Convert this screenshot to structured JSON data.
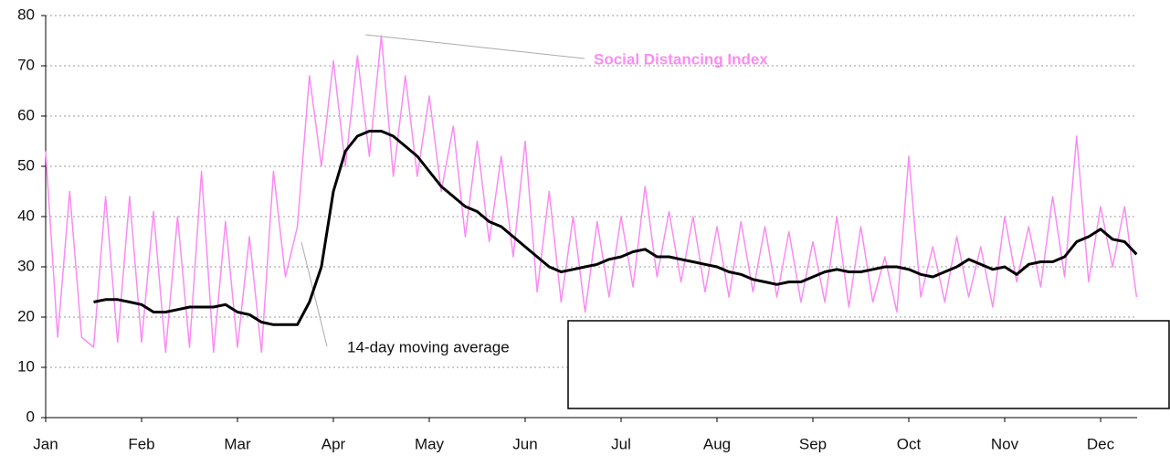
{
  "chart_data": {
    "type": "line",
    "categories": [
      "Jan",
      null,
      null,
      null,
      null,
      null,
      null,
      null,
      "Feb",
      null,
      null,
      null,
      null,
      null,
      null,
      null,
      "Mar",
      null,
      null,
      null,
      null,
      null,
      null,
      null,
      "Apr",
      null,
      null,
      null,
      null,
      null,
      null,
      null,
      "May",
      null,
      null,
      null,
      null,
      null,
      null,
      null,
      "Jun",
      null,
      null,
      null,
      null,
      null,
      null,
      null,
      "Jul",
      null,
      null,
      null,
      null,
      null,
      null,
      null,
      "Aug",
      null,
      null,
      null,
      null,
      null,
      null,
      null,
      "Sep",
      null,
      null,
      null,
      null,
      null,
      null,
      null,
      "Oct",
      null,
      null,
      null,
      null,
      null,
      null,
      null,
      "Nov",
      null,
      null,
      null,
      null,
      null,
      null,
      null,
      "Dec",
      null,
      null,
      null
    ],
    "series": [
      {
        "name": "Social Distancing Index",
        "color": "#f98cf2",
        "values": [
          53,
          16,
          45,
          16,
          14,
          44,
          15,
          44,
          15,
          41,
          13,
          40,
          14,
          49,
          13,
          39,
          14,
          36,
          13,
          49,
          28,
          38,
          68,
          50,
          71,
          50,
          72,
          52,
          76,
          48,
          68,
          48,
          64,
          45,
          58,
          36,
          55,
          35,
          52,
          32,
          55,
          25,
          45,
          23,
          40,
          21,
          39,
          24,
          40,
          26,
          46,
          28,
          41,
          27,
          40,
          25,
          38,
          24,
          39,
          25,
          38,
          24,
          37,
          23,
          35,
          23,
          40,
          22,
          38,
          23,
          32,
          21,
          52,
          24,
          34,
          23,
          36,
          24,
          34,
          22,
          40,
          27,
          38,
          26,
          44,
          28,
          56,
          27,
          42,
          30,
          42,
          24
        ]
      },
      {
        "name": "14-day moving average",
        "color": "#000000",
        "values": [
          null,
          null,
          null,
          null,
          23,
          23.5,
          23.5,
          23,
          22.5,
          21,
          21,
          21.5,
          22,
          22,
          22,
          22.5,
          21,
          20.5,
          19,
          18.5,
          18.5,
          18.5,
          23,
          30,
          45,
          53,
          56,
          57,
          57,
          56,
          54,
          52,
          49,
          46,
          44,
          42,
          41,
          39,
          38,
          36,
          34,
          32,
          30,
          29,
          29.5,
          30,
          30.5,
          31.5,
          32,
          33,
          33.5,
          32,
          32,
          31.5,
          31,
          30.5,
          30,
          29,
          28.5,
          27.5,
          27,
          26.5,
          27,
          27,
          28,
          29,
          29.5,
          29,
          29,
          29.5,
          30,
          30,
          29.5,
          28.5,
          28,
          29,
          30,
          31.5,
          30.5,
          29.5,
          30,
          28.5,
          30.5,
          31,
          31,
          32,
          35,
          36,
          37.5,
          35.5,
          35,
          32.5
        ]
      }
    ],
    "ylim": [
      0,
      80
    ],
    "yticks": [
      0,
      10,
      20,
      30,
      40,
      50,
      60,
      70,
      80
    ],
    "grid": true
  }
}
